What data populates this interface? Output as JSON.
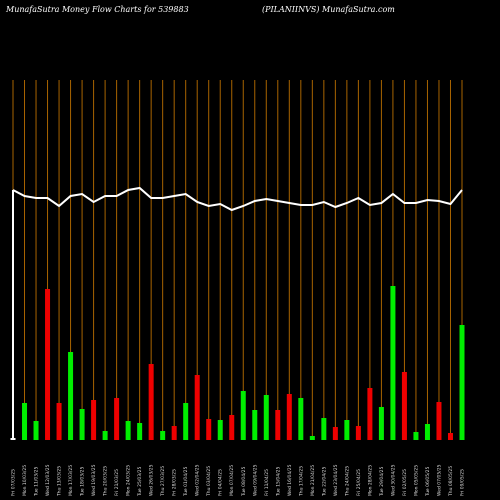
{
  "chart_data": {
    "type": "bar",
    "title": "MunafaSutra  Money Flow  Charts for 539883",
    "subtitle": "(PILANIINVS) MunafaSutra.com",
    "categories": [
      "Fri 07/03/25",
      "Mon 10/03/25",
      "Tue 11/03/25",
      "Wed 12/03/25",
      "Thu 13/03/25",
      "Mon 17/03/25",
      "Tue 18/03/25",
      "Wed 19/03/25",
      "Thu 20/03/25",
      "Fri 21/03/25",
      "Mon 24/03/25",
      "Tue 25/03/25",
      "Wed 26/03/25",
      "Thu 27/03/25",
      "Fri 28/03/25",
      "Tue 01/04/25",
      "Wed 02/04/25",
      "Thu 03/04/25",
      "Fri 04/04/25",
      "Mon 07/04/25",
      "Tue 08/04/25",
      "Wed 09/04/25",
      "Fri 11/04/25",
      "Tue 15/04/25",
      "Wed 16/04/25",
      "Thu 17/04/25",
      "Mon 21/04/25",
      "Tue 22/04/25",
      "Wed 23/04/25",
      "Thu 24/04/25",
      "Fri 25/04/25",
      "Mon 28/04/25",
      "Tue 29/04/25",
      "Wed 30/04/25",
      "Fri 02/05/25",
      "Mon 05/05/25",
      "Tue 06/05/25",
      "Wed 07/05/25",
      "Thu 08/05/25",
      "Fri 09/05/25"
    ],
    "values": [
      2,
      37,
      19,
      151,
      37,
      88,
      31,
      40,
      9,
      42,
      19,
      17,
      76,
      9,
      14,
      37,
      65,
      21,
      20,
      25,
      49,
      30,
      45,
      30,
      46,
      42,
      4,
      22,
      13,
      20,
      14,
      52,
      33,
      154,
      68,
      8,
      16,
      38,
      7,
      115
    ],
    "colors": [
      "#ffffff",
      "#00ee00",
      "#00ee00",
      "#ee0000",
      "#ee0000",
      "#00ee00",
      "#00ee00",
      "#ee0000",
      "#00ee00",
      "#ee0000",
      "#00ee00",
      "#00ee00",
      "#ee0000",
      "#00ee00",
      "#ee0000",
      "#00ee00",
      "#ee0000",
      "#ee0000",
      "#00ee00",
      "#ee0000",
      "#00ee00",
      "#00ee00",
      "#00ee00",
      "#ee0000",
      "#ee0000",
      "#00ee00",
      "#00ee00",
      "#00ee00",
      "#ee0000",
      "#00ee00",
      "#ee0000",
      "#ee0000",
      "#00ee00",
      "#00ee00",
      "#ee0000",
      "#00ee00",
      "#00ee00",
      "#ee0000",
      "#ee0000",
      "#00ee00"
    ],
    "line": {
      "color": "#ffffff",
      "values": [
        250,
        244,
        242,
        242,
        234,
        244,
        246,
        238,
        244,
        244,
        250,
        252,
        242,
        242,
        244,
        246,
        238,
        234,
        236,
        230,
        234,
        239,
        241,
        239,
        237,
        235,
        235,
        238,
        233,
        237,
        242,
        235,
        237,
        246,
        237,
        237,
        240,
        239,
        236,
        250
      ]
    }
  }
}
